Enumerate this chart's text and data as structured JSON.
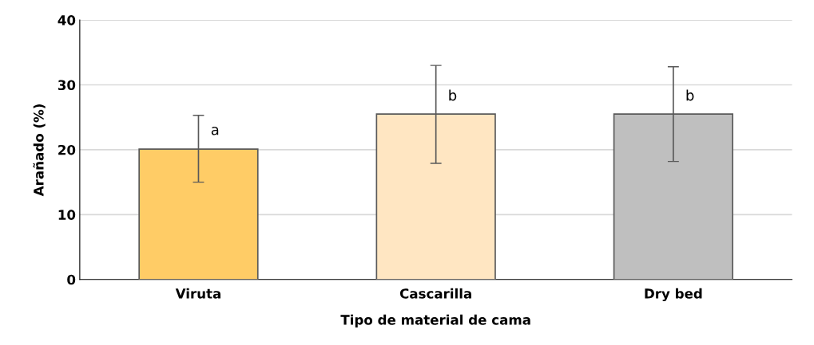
{
  "chart_data": {
    "type": "bar",
    "xlabel": "Tipo de material de cama",
    "ylabel": "Arañado (%)",
    "categories": [
      "Viruta",
      "Cascarilla",
      "Dry bed"
    ],
    "values": [
      20.1,
      25.5,
      25.5
    ],
    "colors": [
      "#ffcc66",
      "#ffe6c2",
      "#bfbfbf"
    ],
    "errors": [
      [
        15.0,
        25.3
      ],
      [
        17.9,
        33.0
      ],
      [
        18.2,
        32.8
      ]
    ],
    "ylim": [
      0,
      40
    ],
    "yticks": [
      0,
      10,
      20,
      30,
      40
    ],
    "grid": "y",
    "annotations": [
      {
        "text": "a",
        "x": "Viruta",
        "y": 22.9
      },
      {
        "text": "b",
        "x": "Cascarilla",
        "y": 28.2
      },
      {
        "text": "b",
        "x": "Dry bed",
        "y": 28.2
      }
    ]
  }
}
